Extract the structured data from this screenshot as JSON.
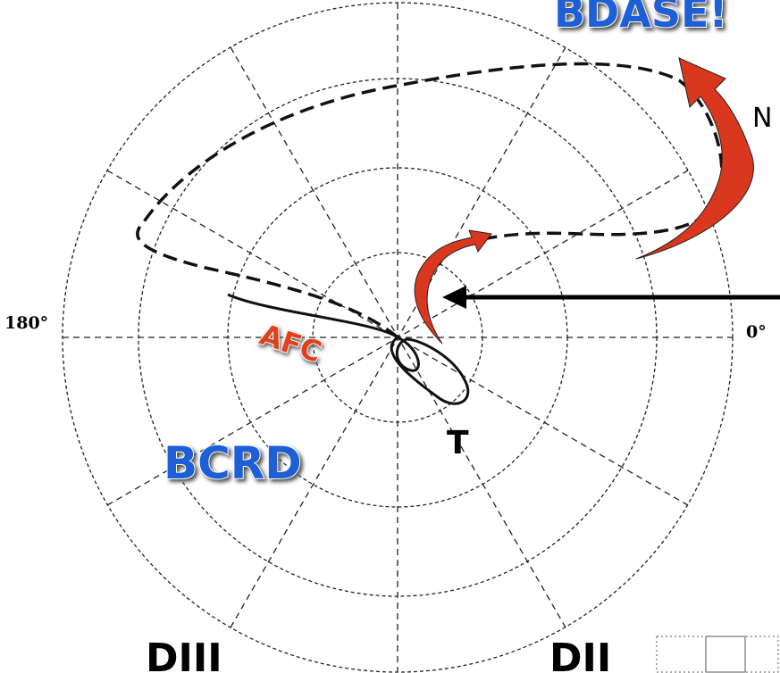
{
  "labels": {
    "top_banner": "BDASE!",
    "n_marker": "N",
    "left_angle": "180°",
    "right_angle": "0°",
    "afc": "AFC",
    "bcrd": "BCRD",
    "t_marker": "T",
    "lead_diii": "DIII",
    "lead_dii": "DII"
  }
}
